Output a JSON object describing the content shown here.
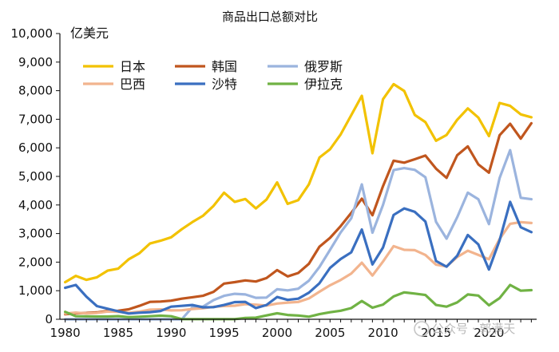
{
  "chart_data": {
    "type": "line",
    "title": "商品出口总额对比",
    "ylabel": "亿美元",
    "xlabel": "",
    "xlim": [
      1979.5,
      2024.5
    ],
    "ylim": [
      0,
      10000
    ],
    "x_ticks": [
      "1980",
      "1985",
      "1990",
      "1995",
      "2000",
      "2005",
      "2010",
      "2015",
      "2020"
    ],
    "y_ticks": [
      "0",
      "1,000",
      "2,000",
      "3,000",
      "4,000",
      "5,000",
      "6,000",
      "7,000",
      "8,000",
      "9,000",
      "10,000"
    ],
    "grid": false,
    "legend_position": "top-left",
    "x": [
      1980,
      1981,
      1982,
      1983,
      1984,
      1985,
      1986,
      1987,
      1988,
      1989,
      1990,
      1991,
      1992,
      1993,
      1994,
      1995,
      1996,
      1997,
      1998,
      1999,
      2000,
      2001,
      2002,
      2003,
      2004,
      2005,
      2006,
      2007,
      2008,
      2009,
      2010,
      2011,
      2012,
      2013,
      2014,
      2015,
      2016,
      2017,
      2018,
      2019,
      2020,
      2021,
      2022,
      2023,
      2024
    ],
    "series": [
      {
        "name": "日本",
        "color": "#F2C200",
        "values": [
          1300,
          1520,
          1380,
          1470,
          1700,
          1770,
          2100,
          2310,
          2650,
          2750,
          2870,
          3150,
          3400,
          3620,
          3970,
          4430,
          4110,
          4210,
          3880,
          4190,
          4790,
          4040,
          4170,
          4720,
          5660,
          5950,
          6470,
          7140,
          7820,
          5810,
          7700,
          8230,
          7990,
          7150,
          6900,
          6250,
          6450,
          6980,
          7380,
          7060,
          6410,
          7570,
          7470,
          7170,
          7070
        ]
      },
      {
        "name": "韩国",
        "color": "#C0561E",
        "values": [
          175,
          210,
          220,
          240,
          290,
          300,
          350,
          470,
          610,
          620,
          650,
          720,
          770,
          820,
          960,
          1250,
          1300,
          1360,
          1320,
          1440,
          1720,
          1500,
          1620,
          1940,
          2540,
          2850,
          3260,
          3720,
          4220,
          3640,
          4660,
          5550,
          5480,
          5600,
          5730,
          5270,
          4950,
          5740,
          6050,
          5420,
          5130,
          6440,
          6840,
          6320,
          6860
        ]
      },
      {
        "name": "俄罗斯",
        "color": "#9BB4DE",
        "values": [
          0,
          0,
          0,
          0,
          0,
          0,
          0,
          0,
          0,
          0,
          0,
          0,
          420,
          440,
          670,
          820,
          890,
          870,
          750,
          760,
          1050,
          1010,
          1070,
          1350,
          1830,
          2430,
          3040,
          3530,
          4720,
          3030,
          4000,
          5220,
          5290,
          5230,
          4970,
          3410,
          2820,
          3570,
          4430,
          4200,
          3330,
          4940,
          5920,
          4250,
          4200
        ]
      },
      {
        "name": "巴西",
        "color": "#F2B48E",
        "values": [
          200,
          235,
          205,
          220,
          270,
          260,
          225,
          265,
          335,
          345,
          310,
          315,
          360,
          385,
          435,
          465,
          475,
          530,
          510,
          480,
          550,
          585,
          605,
          730,
          965,
          1190,
          1375,
          1600,
          1980,
          1530,
          2020,
          2560,
          2430,
          2420,
          2250,
          1910,
          1850,
          2180,
          2400,
          2250,
          2100,
          2810,
          3340,
          3400,
          3370
        ]
      },
      {
        "name": "沙特",
        "color": "#3A6FC0",
        "values": [
          1100,
          1200,
          790,
          460,
          370,
          280,
          200,
          230,
          250,
          290,
          440,
          470,
          500,
          420,
          425,
          500,
          600,
          610,
          390,
          500,
          780,
          680,
          720,
          930,
          1260,
          1800,
          2110,
          2340,
          3140,
          1920,
          2510,
          3650,
          3880,
          3760,
          3420,
          2040,
          1840,
          2220,
          2950,
          2620,
          1740,
          2760,
          4110,
          3220,
          3050
        ]
      },
      {
        "name": "伊拉克",
        "color": "#70B244",
        "values": [
          260,
          105,
          100,
          95,
          95,
          110,
          75,
          90,
          105,
          125,
          105,
          5,
          5,
          5,
          5,
          5,
          5,
          45,
          55,
          135,
          210,
          150,
          130,
          90,
          180,
          245,
          300,
          390,
          640,
          405,
          515,
          800,
          940,
          900,
          850,
          500,
          440,
          590,
          870,
          830,
          490,
          740,
          1200,
          1000,
          1020
        ]
      }
    ]
  },
  "watermark": "公众号 · 郭满天"
}
